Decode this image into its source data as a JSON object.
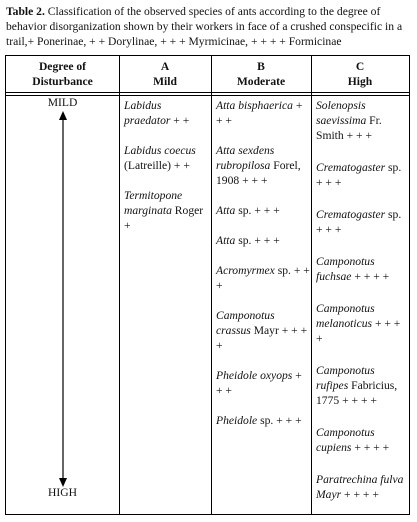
{
  "caption": {
    "label": "Table 2.",
    "text": "Classification of the observed species of ants according to the degree of behavior disorganization shown by their workers in face of a crushed conspecific in a trail,+ Ponerinae,  + + Dorylinae,  + + + Myrmicinae,  + + + + Formicinae"
  },
  "table": {
    "header": [
      [
        "Degree of",
        "Disturbance"
      ],
      [
        "A",
        "Mild"
      ],
      [
        "B",
        "Moderate"
      ],
      [
        "C",
        "High"
      ]
    ],
    "axis": {
      "top": "MILD",
      "bottom": "HIGH"
    },
    "columns": [
      null,
      [
        {
          "name": "Labidus praedator",
          "suffix": "+ +"
        },
        {
          "name": "Labidus coecus",
          "suffix": "(Latreille) + +"
        },
        {
          "name": "Termitopone marginata",
          "suffix": "Roger +"
        }
      ],
      [
        {
          "name": "Atta bisphaerica",
          "suffix": "+ + +"
        },
        {
          "name": "Atta sexdens rubropilosa",
          "suffix": "Forel, 1908 + + +"
        },
        {
          "name": "Atta",
          "suffix": "sp. + + +"
        },
        {
          "name": "Atta",
          "suffix": "sp. + + +"
        },
        {
          "name": "Acromyrmex",
          "suffix": "sp. + + +"
        },
        {
          "name": "Camponotus crassus",
          "suffix": "Mayr + + + +"
        },
        {
          "name": "Pheidole oxyops",
          "suffix": "+ + +"
        },
        {
          "name": "Pheidole",
          "suffix": "sp. + + +"
        }
      ],
      [
        {
          "name": "Solenopsis saevissima",
          "suffix": "Fr. Smith + + +"
        },
        {
          "name": "Crematogaster",
          "suffix": "sp. + + +"
        },
        {
          "name": "Crematogaster",
          "suffix": "sp. + + +"
        },
        {
          "name": "Camponotus fuchsae",
          "suffix": "+ + + +"
        },
        {
          "name": "Camponotus melanoticus",
          "suffix": "+ + + +"
        },
        {
          "name": "Camponotus rufipes",
          "suffix": "Fabricius, 1775 + + + +"
        },
        {
          "name": "Camponotus cupiens",
          "suffix": "+ + + +"
        },
        {
          "name": "Paratrechina fulva Mayr",
          "suffix": "+ + + +"
        }
      ]
    ]
  }
}
